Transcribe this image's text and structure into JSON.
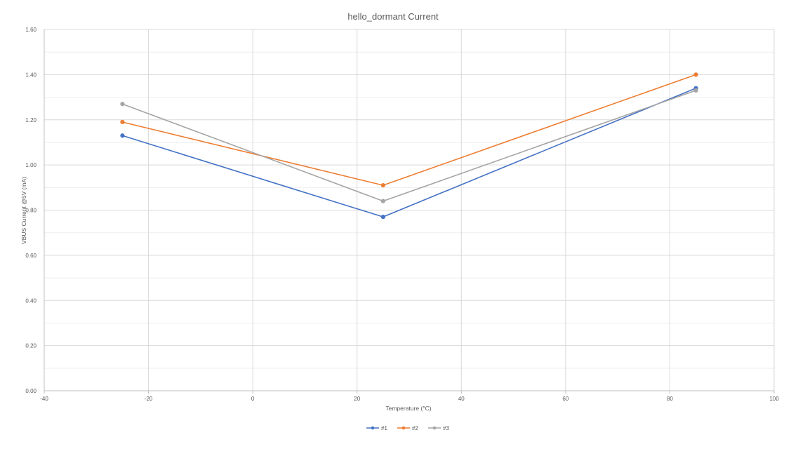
{
  "chart_data": {
    "type": "scatter",
    "title": "hello_dormant Current",
    "xlabel": "Temperature (°C)",
    "ylabel": "VBUS Current @5V (mA)",
    "xlim": [
      -40,
      100
    ],
    "ylim": [
      0,
      1.6
    ],
    "x_ticks": [
      "-40",
      "-20",
      "0",
      "20",
      "40",
      "60",
      "80",
      "100"
    ],
    "y_ticks": [
      "0.00",
      "0.20",
      "0.40",
      "0.60",
      "0.80",
      "1.00",
      "1.20",
      "1.40",
      "1.60"
    ],
    "grid": true,
    "legend_position": "bottom",
    "lines_connected": true,
    "series": [
      {
        "name": "#1",
        "color": "#4472C4",
        "x": [
          -25,
          25,
          85
        ],
        "y": [
          1.13,
          0.77,
          1.34
        ]
      },
      {
        "name": "#2",
        "color": "#ED7D31",
        "x": [
          -25,
          25,
          85
        ],
        "y": [
          1.19,
          0.91,
          1.4
        ]
      },
      {
        "name": "#3",
        "color": "#A5A5A5",
        "x": [
          -25,
          25,
          85
        ],
        "y": [
          1.27,
          0.84,
          1.33
        ]
      }
    ]
  }
}
